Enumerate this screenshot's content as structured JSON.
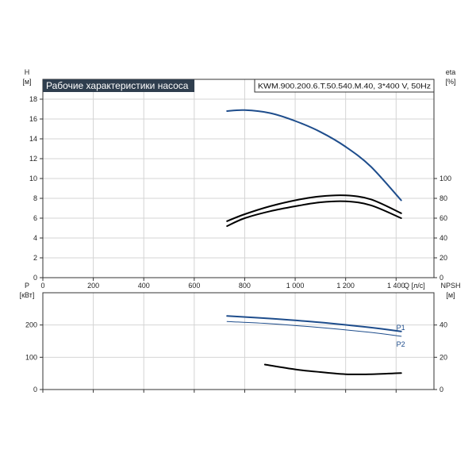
{
  "header": {
    "title": "Рабочие характеристики насоса",
    "model": "KWM.900.200.6.T.50.540.M.40, 3*400 V, 50Hz"
  },
  "colors": {
    "blue": "#1e4d8c",
    "black": "#000000",
    "grid": "#d4d4d4"
  },
  "chart_data": [
    {
      "id": "head-efficiency",
      "type": "line",
      "grid": true,
      "x_label": "Q [л/с]",
      "x_ticks": [
        0,
        200,
        400,
        600,
        800,
        1000,
        1200,
        1400
      ],
      "x_tick_labels": [
        "0",
        "200",
        "400",
        "600",
        "800",
        "1 000",
        "1 200",
        "1 400"
      ],
      "xlim": [
        0,
        1550
      ],
      "left_axis": {
        "name": "H",
        "unit": "[м]",
        "ylim": [
          0,
          20
        ],
        "ticks": [
          0,
          2,
          4,
          6,
          8,
          10,
          12,
          14,
          16,
          18
        ]
      },
      "right_axis": {
        "name": "eta",
        "unit": "[%]",
        "ylim": [
          0,
          200
        ],
        "ticks": [
          0,
          20,
          40,
          60,
          80,
          100
        ]
      },
      "series": [
        {
          "axis": "left",
          "color": "#1e4d8c",
          "x": [
            730,
            800,
            900,
            1000,
            1100,
            1200,
            1300,
            1420
          ],
          "y": [
            16.8,
            16.9,
            16.6,
            15.8,
            14.7,
            13.2,
            11.2,
            7.8
          ]
        },
        {
          "axis": "right",
          "color": "#000000",
          "x": [
            730,
            800,
            900,
            1000,
            1100,
            1200,
            1300,
            1420
          ],
          "y": [
            57,
            64,
            72,
            78,
            82,
            83,
            79,
            65
          ]
        },
        {
          "axis": "right",
          "color": "#000000",
          "x": [
            730,
            800,
            900,
            1000,
            1100,
            1200,
            1300,
            1420
          ],
          "y": [
            52,
            60,
            67,
            72,
            76,
            77,
            73,
            60
          ]
        }
      ]
    },
    {
      "id": "power-npsh",
      "type": "line",
      "grid": true,
      "x_ticks": [
        0,
        200,
        400,
        600,
        800,
        1000,
        1200,
        1400
      ],
      "xlim": [
        0,
        1550
      ],
      "left_axis": {
        "name": "P",
        "unit": "[кВт]",
        "ylim": [
          0,
          300
        ],
        "ticks": [
          0,
          100,
          200
        ]
      },
      "right_axis": {
        "name": "NPSH",
        "unit": "[м]",
        "ylim": [
          0,
          60
        ],
        "ticks": [
          0,
          20,
          40
        ]
      },
      "series": [
        {
          "name": "P1",
          "axis": "left",
          "color": "#1e4d8c",
          "width": 2,
          "x": [
            730,
            900,
            1100,
            1300,
            1420
          ],
          "y": [
            228,
            220,
            208,
            192,
            180
          ]
        },
        {
          "name": "P2",
          "axis": "left",
          "color": "#1e4d8c",
          "width": 1,
          "x": [
            730,
            900,
            1100,
            1300,
            1420
          ],
          "y": [
            211,
            204,
            192,
            177,
            165
          ]
        },
        {
          "axis": "right",
          "color": "#000000",
          "width": 2,
          "x": [
            880,
            1000,
            1100,
            1200,
            1300,
            1420
          ],
          "y": [
            15.5,
            12.5,
            10.8,
            9.5,
            9.5,
            10.2
          ]
        }
      ]
    }
  ]
}
